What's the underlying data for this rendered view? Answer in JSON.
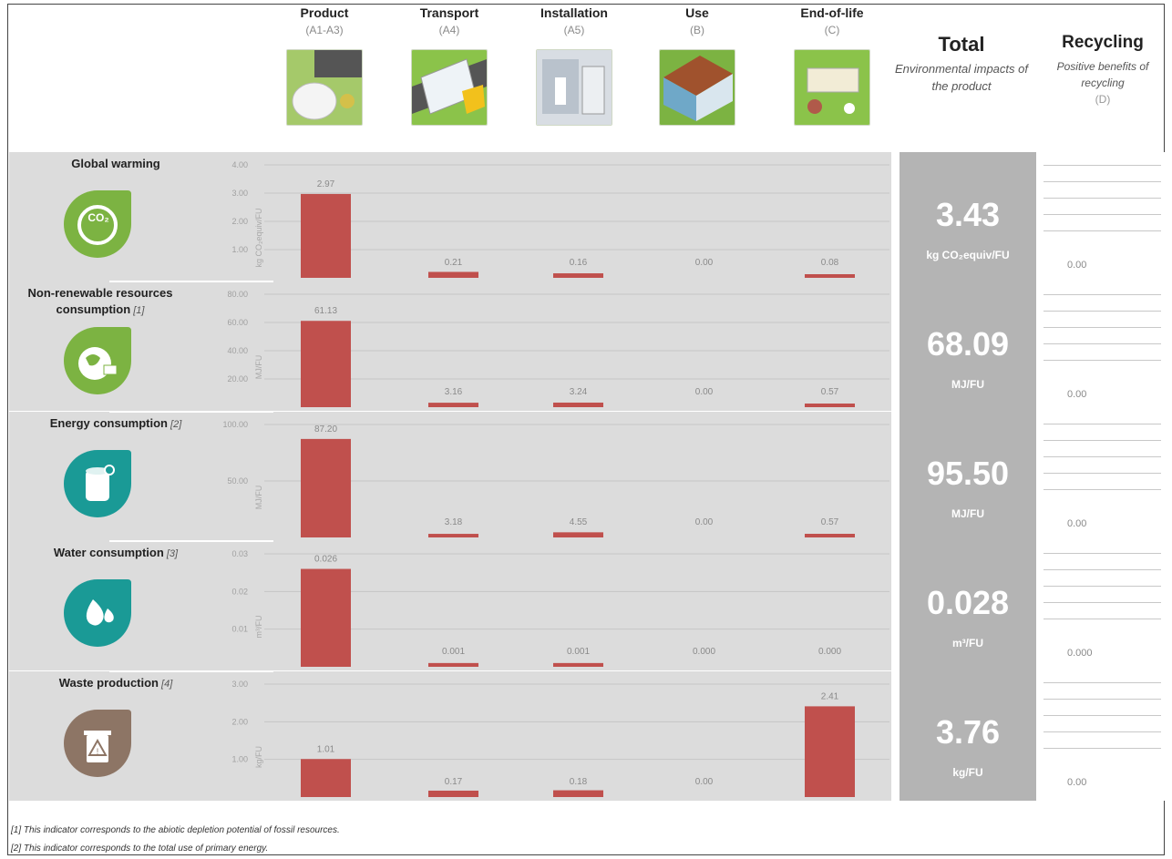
{
  "stages": [
    {
      "name": "Product",
      "code": "(A1-A3)"
    },
    {
      "name": "Transport",
      "code": "(A4)"
    },
    {
      "name": "Installation",
      "code": "(A5)"
    },
    {
      "name": "Use",
      "code": "(B)"
    },
    {
      "name": "End-of-life",
      "code": "(C)"
    }
  ],
  "total_header": {
    "title": "Total",
    "subtitle": "Environmental impacts of the product"
  },
  "recycling_header": {
    "title": "Recycling",
    "subtitle": "Positive benefits of recycling",
    "code": "(D)"
  },
  "colors": {
    "bar": "#c0504d",
    "row_bg": "#dcdcdc",
    "total_bg": "#b4b4b4",
    "icon_green": "#7cb342",
    "icon_teal": "#1a9a96",
    "icon_brown": "#8d7565"
  },
  "chart_data": [
    {
      "type": "bar",
      "indicator": "Global warming",
      "note": "",
      "icon": "co2-globe-icon",
      "categories": [
        "Product",
        "Transport",
        "Installation",
        "Use",
        "End-of-life"
      ],
      "values": [
        2.97,
        0.21,
        0.16,
        0.0,
        0.08
      ],
      "labels": [
        "2.97",
        "0.21",
        "0.16",
        "0.00",
        "0.08"
      ],
      "ylabel": "kg CO₂equiv/FU",
      "ylim": [
        0,
        4
      ],
      "ticks": [
        "4.00",
        "3.00",
        "2.00",
        "1.00"
      ],
      "tick_values": [
        4,
        3,
        2,
        1
      ],
      "total": "3.43",
      "total_unit": "kg CO₂equiv/FU",
      "recycling": "0.00"
    },
    {
      "type": "bar",
      "indicator": "Non-renewable resources consumption",
      "note": "[1]",
      "icon": "globe-resources-icon",
      "categories": [
        "Product",
        "Transport",
        "Installation",
        "Use",
        "End-of-life"
      ],
      "values": [
        61.13,
        3.16,
        3.24,
        0.0,
        0.57
      ],
      "labels": [
        "61.13",
        "3.16",
        "3.24",
        "0.00",
        "0.57"
      ],
      "ylabel": "MJ/FU",
      "ylim": [
        0,
        80
      ],
      "ticks": [
        "80.00",
        "60.00",
        "40.00",
        "20.00"
      ],
      "tick_values": [
        80,
        60,
        40,
        20
      ],
      "total": "68.09",
      "total_unit": "MJ/FU",
      "recycling": "0.00"
    },
    {
      "type": "bar",
      "indicator": "Energy consumption",
      "note": "[2]",
      "icon": "oil-barrel-icon",
      "categories": [
        "Product",
        "Transport",
        "Installation",
        "Use",
        "End-of-life"
      ],
      "values": [
        87.2,
        3.18,
        4.55,
        0.0,
        0.57
      ],
      "labels": [
        "87.20",
        "3.18",
        "4.55",
        "0.00",
        "0.57"
      ],
      "ylabel": "MJ/FU",
      "ylim": [
        0,
        100
      ],
      "ticks": [
        "100.00",
        "50.00"
      ],
      "tick_values": [
        100,
        50
      ],
      "total": "95.50",
      "total_unit": "MJ/FU",
      "recycling": "0.00"
    },
    {
      "type": "bar",
      "indicator": "Water consumption",
      "note": "[3]",
      "icon": "water-drops-icon",
      "categories": [
        "Product",
        "Transport",
        "Installation",
        "Use",
        "End-of-life"
      ],
      "values": [
        0.026,
        0.001,
        0.001,
        0.0,
        0.0
      ],
      "labels": [
        "0.026",
        "0.001",
        "0.001",
        "0.000",
        "0.000"
      ],
      "ylabel": "m³/FU",
      "ylim": [
        0,
        0.03
      ],
      "ticks": [
        "0.03",
        "0.02",
        "0.01"
      ],
      "tick_values": [
        0.03,
        0.02,
        0.01
      ],
      "total": "0.028",
      "total_unit": "m³/FU",
      "recycling": "0.000"
    },
    {
      "type": "bar",
      "indicator": "Waste production",
      "note": "[4]",
      "icon": "waste-bin-icon",
      "categories": [
        "Product",
        "Transport",
        "Installation",
        "Use",
        "End-of-life"
      ],
      "values": [
        1.01,
        0.17,
        0.18,
        0.0,
        2.41
      ],
      "labels": [
        "1.01",
        "0.17",
        "0.18",
        "0.00",
        "2.41"
      ],
      "ylabel": "kg/FU",
      "ylim": [
        0,
        3
      ],
      "ticks": [
        "3.00",
        "2.00",
        "1.00"
      ],
      "tick_values": [
        3,
        2,
        1
      ],
      "total": "3.76",
      "total_unit": "kg/FU",
      "recycling": "0.00"
    }
  ],
  "footnotes": [
    "[1] This indicator corresponds to the abiotic depletion potential of fossil resources.",
    "[2] This indicator corresponds to the total use of primary energy."
  ]
}
